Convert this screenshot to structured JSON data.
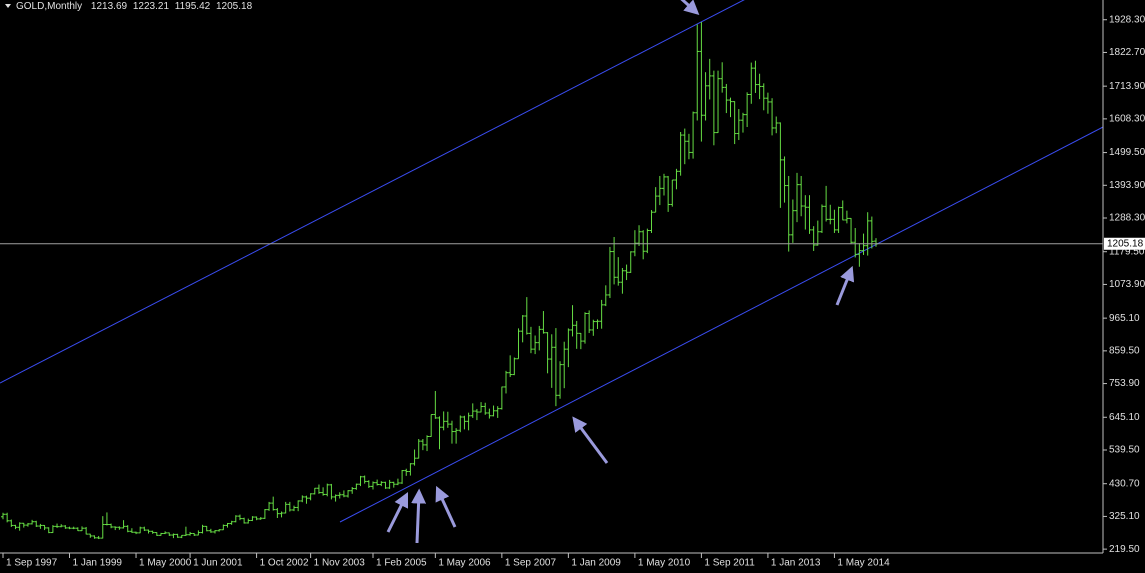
{
  "chart_data": {
    "type": "ohlc",
    "symbol": "GOLD,Monthly",
    "color": "#66dd44",
    "categories": [
      "1 Sep 1997",
      null,
      null,
      null,
      null,
      null,
      null,
      null,
      null,
      null,
      null,
      null,
      null,
      null,
      null,
      null,
      "1 Jan 1999",
      null,
      null,
      null,
      null,
      null,
      null,
      null,
      null,
      null,
      null,
      null,
      null,
      null,
      null,
      null,
      "1 May 2000",
      null,
      null,
      null,
      null,
      null,
      null,
      null,
      null,
      null,
      null,
      null,
      null,
      "1 Jun 2001",
      null,
      null,
      null,
      null,
      null,
      null,
      null,
      null,
      null,
      null,
      null,
      null,
      null,
      null,
      null,
      "1 Oct 2002",
      null,
      null,
      null,
      null,
      null,
      null,
      null,
      null,
      null,
      null,
      null,
      null,
      "1 Nov 2003",
      null,
      null,
      null,
      null,
      null,
      null,
      null,
      null,
      null,
      null,
      null,
      null,
      null,
      null,
      "1 Feb 2005",
      null,
      null,
      null,
      null,
      null,
      null,
      null,
      null,
      null,
      null,
      null,
      null,
      null,
      null,
      "1 May 2006",
      null,
      null,
      null,
      null,
      null,
      null,
      null,
      null,
      null,
      null,
      null,
      null,
      null,
      null,
      null,
      "1 Sep 2007",
      null,
      null,
      null,
      null,
      null,
      null,
      null,
      null,
      null,
      null,
      null,
      null,
      null,
      null,
      null,
      "1 Jan 2009",
      null,
      null,
      null,
      null,
      null,
      null,
      null,
      null,
      null,
      null,
      null,
      null,
      null,
      null,
      null,
      "1 May 2010",
      null,
      null,
      null,
      null,
      null,
      null,
      null,
      null,
      null,
      null,
      null,
      null,
      null,
      null,
      null,
      "1 Sep 2011",
      null,
      null,
      null,
      null,
      null,
      null,
      null,
      null,
      null,
      null,
      null,
      null,
      null,
      null,
      null,
      "1 Jan 2013",
      null,
      null,
      null,
      null,
      null,
      null,
      null,
      null,
      null,
      null,
      null,
      null,
      null,
      null,
      null,
      "1 May 2014",
      null,
      null,
      null,
      null,
      null,
      null,
      null,
      null,
      null,
      null
    ],
    "bars": [
      [
        324,
        337,
        316,
        332
      ],
      [
        332,
        337,
        306,
        311
      ],
      [
        311,
        315,
        291,
        296
      ],
      [
        296,
        298,
        284,
        290
      ],
      [
        290,
        306,
        279,
        303
      ],
      [
        303,
        304,
        289,
        297
      ],
      [
        297,
        304,
        292,
        301
      ],
      [
        301,
        314,
        299,
        308
      ],
      [
        308,
        311,
        291,
        294
      ],
      [
        294,
        301,
        285,
        296
      ],
      [
        296,
        297,
        281,
        288
      ],
      [
        288,
        290,
        271,
        273
      ],
      [
        273,
        297,
        272,
        293
      ],
      [
        293,
        302,
        288,
        292
      ],
      [
        292,
        300,
        290,
        294
      ],
      [
        294,
        297,
        285,
        288
      ],
      [
        288,
        292,
        284,
        287
      ],
      [
        287,
        292,
        284,
        287
      ],
      [
        287,
        290,
        278,
        279
      ],
      [
        279,
        293,
        278,
        287
      ],
      [
        287,
        291,
        267,
        268
      ],
      [
        268,
        269,
        256,
        262
      ],
      [
        262,
        264,
        253,
        256
      ],
      [
        256,
        262,
        252,
        255
      ],
      [
        255,
        326,
        254,
        299
      ],
      [
        299,
        338,
        296,
        299
      ],
      [
        299,
        302,
        287,
        291
      ],
      [
        291,
        293,
        281,
        290
      ],
      [
        290,
        293,
        282,
        288
      ],
      [
        288,
        313,
        286,
        293
      ],
      [
        293,
        297,
        274,
        277
      ],
      [
        277,
        287,
        272,
        274
      ],
      [
        274,
        276,
        268,
        272
      ],
      [
        272,
        292,
        271,
        288
      ],
      [
        288,
        292,
        278,
        281
      ],
      [
        281,
        283,
        270,
        277
      ],
      [
        277,
        279,
        269,
        273
      ],
      [
        273,
        274,
        262,
        264
      ],
      [
        264,
        272,
        263,
        270
      ],
      [
        270,
        277,
        268,
        272
      ],
      [
        272,
        273,
        262,
        265
      ],
      [
        265,
        270,
        255,
        267
      ],
      [
        267,
        269,
        256,
        258
      ],
      [
        258,
        265,
        255,
        264
      ],
      [
        264,
        292,
        262,
        266
      ],
      [
        266,
        275,
        263,
        270
      ],
      [
        270,
        271,
        262,
        265
      ],
      [
        265,
        280,
        264,
        273
      ],
      [
        273,
        298,
        270,
        293
      ],
      [
        293,
        294,
        277,
        279
      ],
      [
        279,
        285,
        272,
        275
      ],
      [
        275,
        281,
        270,
        279
      ],
      [
        279,
        284,
        276,
        282
      ],
      [
        282,
        299,
        281,
        296
      ],
      [
        296,
        304,
        289,
        302
      ],
      [
        302,
        311,
        298,
        308
      ],
      [
        308,
        329,
        306,
        326
      ],
      [
        326,
        331,
        313,
        318
      ],
      [
        318,
        321,
        302,
        304
      ],
      [
        304,
        318,
        302,
        312
      ],
      [
        312,
        326,
        310,
        323
      ],
      [
        323,
        325,
        313,
        317
      ],
      [
        317,
        323,
        314,
        319
      ],
      [
        319,
        349,
        317,
        347
      ],
      [
        347,
        372,
        343,
        368
      ],
      [
        368,
        389,
        344,
        347
      ],
      [
        347,
        352,
        320,
        334
      ],
      [
        334,
        341,
        322,
        336
      ],
      [
        336,
        372,
        335,
        364
      ],
      [
        364,
        372,
        341,
        346
      ],
      [
        346,
        360,
        342,
        354
      ],
      [
        354,
        377,
        342,
        375
      ],
      [
        375,
        393,
        371,
        388
      ],
      [
        388,
        392,
        366,
        384
      ],
      [
        384,
        400,
        377,
        398
      ],
      [
        398,
        417,
        396,
        416
      ],
      [
        416,
        428,
        398,
        402
      ],
      [
        402,
        419,
        392,
        396
      ],
      [
        396,
        431,
        390,
        427
      ],
      [
        427,
        430,
        380,
        388
      ],
      [
        388,
        396,
        373,
        393
      ],
      [
        393,
        403,
        383,
        395
      ],
      [
        395,
        409,
        387,
        391
      ],
      [
        391,
        410,
        386,
        408
      ],
      [
        408,
        420,
        398,
        415
      ],
      [
        415,
        431,
        411,
        429
      ],
      [
        429,
        456,
        423,
        453
      ],
      [
        453,
        457,
        431,
        438
      ],
      [
        438,
        442,
        417,
        422
      ],
      [
        422,
        438,
        412,
        434
      ],
      [
        434,
        444,
        425,
        428
      ],
      [
        428,
        439,
        423,
        435
      ],
      [
        435,
        437,
        414,
        417
      ],
      [
        417,
        443,
        414,
        435
      ],
      [
        435,
        437,
        418,
        429
      ],
      [
        429,
        447,
        426,
        433
      ],
      [
        433,
        475,
        430,
        473
      ],
      [
        473,
        479,
        456,
        470
      ],
      [
        470,
        497,
        457,
        495
      ],
      [
        495,
        541,
        489,
        513
      ],
      [
        513,
        575,
        512,
        568
      ],
      [
        568,
        575,
        539,
        556
      ],
      [
        556,
        587,
        536,
        583
      ],
      [
        583,
        654,
        582,
        654
      ],
      [
        654,
        730,
        640,
        643
      ],
      [
        643,
        648,
        542,
        613
      ],
      [
        613,
        664,
        603,
        632
      ],
      [
        632,
        663,
        611,
        623
      ],
      [
        623,
        634,
        560,
        599
      ],
      [
        599,
        610,
        560,
        603
      ],
      [
        603,
        651,
        597,
        646
      ],
      [
        646,
        650,
        606,
        632
      ],
      [
        632,
        660,
        603,
        650
      ],
      [
        650,
        690,
        643,
        665
      ],
      [
        665,
        672,
        636,
        662
      ],
      [
        662,
        694,
        661,
        680
      ],
      [
        680,
        692,
        653,
        659
      ],
      [
        659,
        673,
        641,
        650
      ],
      [
        650,
        683,
        648,
        666
      ],
      [
        666,
        681,
        643,
        673
      ],
      [
        673,
        744,
        670,
        743
      ],
      [
        743,
        795,
        722,
        789
      ],
      [
        789,
        845,
        775,
        783
      ],
      [
        783,
        838,
        781,
        834
      ],
      [
        834,
        932,
        834,
        923
      ],
      [
        923,
        975,
        887,
        972
      ],
      [
        972,
        1033,
        912,
        916
      ],
      [
        916,
        937,
        852,
        865
      ],
      [
        865,
        909,
        849,
        886
      ],
      [
        886,
        940,
        861,
        929
      ],
      [
        929,
        988,
        915,
        918
      ],
      [
        918,
        920,
        787,
        833
      ],
      [
        833,
        913,
        740,
        871
      ],
      [
        871,
        933,
        681,
        716
      ],
      [
        716,
        826,
        705,
        815
      ],
      [
        815,
        889,
        739,
        865
      ],
      [
        865,
        932,
        807,
        927
      ],
      [
        927,
        1007,
        906,
        942
      ],
      [
        942,
        956,
        866,
        916
      ],
      [
        916,
        917,
        865,
        891
      ],
      [
        891,
        984,
        883,
        980
      ],
      [
        980,
        990,
        917,
        927
      ],
      [
        927,
        960,
        908,
        954
      ],
      [
        954,
        961,
        930,
        955
      ],
      [
        955,
        1024,
        931,
        1008
      ],
      [
        1008,
        1071,
        1004,
        1040
      ],
      [
        1040,
        1195,
        1030,
        1180
      ],
      [
        1180,
        1227,
        1074,
        1097
      ],
      [
        1097,
        1162,
        1070,
        1081
      ],
      [
        1081,
        1127,
        1044,
        1118
      ],
      [
        1118,
        1138,
        1088,
        1113
      ],
      [
        1113,
        1181,
        1111,
        1179
      ],
      [
        1179,
        1249,
        1165,
        1207
      ],
      [
        1207,
        1265,
        1198,
        1244
      ],
      [
        1244,
        1249,
        1155,
        1181
      ],
      [
        1181,
        1254,
        1175,
        1248
      ],
      [
        1248,
        1314,
        1240,
        1307
      ],
      [
        1307,
        1388,
        1307,
        1359
      ],
      [
        1359,
        1424,
        1330,
        1384
      ],
      [
        1384,
        1431,
        1361,
        1421
      ],
      [
        1421,
        1424,
        1308,
        1332
      ],
      [
        1332,
        1411,
        1325,
        1411
      ],
      [
        1411,
        1447,
        1381,
        1439
      ],
      [
        1439,
        1566,
        1425,
        1556
      ],
      [
        1556,
        1577,
        1462,
        1536
      ],
      [
        1536,
        1560,
        1478,
        1500
      ],
      [
        1500,
        1632,
        1480,
        1628
      ],
      [
        1628,
        1913,
        1603,
        1826
      ],
      [
        1826,
        1921,
        1535,
        1620
      ],
      [
        1620,
        1759,
        1603,
        1715
      ],
      [
        1715,
        1802,
        1671,
        1747
      ],
      [
        1747,
        1764,
        1523,
        1564
      ],
      [
        1564,
        1764,
        1563,
        1738
      ],
      [
        1738,
        1791,
        1693,
        1710
      ],
      [
        1710,
        1721,
        1627,
        1669
      ],
      [
        1669,
        1677,
        1614,
        1664
      ],
      [
        1664,
        1665,
        1527,
        1561
      ],
      [
        1561,
        1640,
        1540,
        1604
      ],
      [
        1604,
        1628,
        1564,
        1622
      ],
      [
        1622,
        1694,
        1582,
        1687
      ],
      [
        1687,
        1790,
        1657,
        1772
      ],
      [
        1772,
        1796,
        1692,
        1719
      ],
      [
        1719,
        1754,
        1672,
        1713
      ],
      [
        1713,
        1723,
        1636,
        1675
      ],
      [
        1675,
        1693,
        1625,
        1663
      ],
      [
        1663,
        1675,
        1555,
        1579
      ],
      [
        1579,
        1616,
        1562,
        1595
      ],
      [
        1595,
        1597,
        1321,
        1476
      ],
      [
        1476,
        1487,
        1338,
        1393
      ],
      [
        1393,
        1424,
        1180,
        1234
      ],
      [
        1234,
        1348,
        1208,
        1312
      ],
      [
        1312,
        1434,
        1275,
        1396
      ],
      [
        1396,
        1424,
        1294,
        1327
      ],
      [
        1327,
        1362,
        1251,
        1323
      ],
      [
        1323,
        1362,
        1237,
        1250
      ],
      [
        1250,
        1262,
        1182,
        1201
      ],
      [
        1201,
        1280,
        1199,
        1244
      ],
      [
        1244,
        1332,
        1240,
        1326
      ],
      [
        1326,
        1392,
        1277,
        1284
      ],
      [
        1284,
        1331,
        1268,
        1284
      ],
      [
        1284,
        1315,
        1240,
        1250
      ],
      [
        1250,
        1325,
        1240,
        1322
      ],
      [
        1322,
        1345,
        1281,
        1282
      ],
      [
        1282,
        1312,
        1271,
        1287
      ],
      [
        1287,
        1288,
        1204,
        1210
      ],
      [
        1210,
        1256,
        1161,
        1171
      ],
      [
        1171,
        1207,
        1131,
        1183
      ],
      [
        1183,
        1238,
        1169,
        1199
      ],
      [
        1199,
        1307,
        1167,
        1279
      ],
      [
        1279,
        1293,
        1190,
        1213
      ],
      [
        1213.69,
        1223.21,
        1195.42,
        1205.18
      ]
    ],
    "ylim": [
      207,
      1992
    ],
    "yticks": [
      {
        "value": 219.5,
        "label": "219.50"
      },
      {
        "value": 325.1,
        "label": "325.10"
      },
      {
        "value": 430.7,
        "label": "430.70"
      },
      {
        "value": 539.5,
        "label": "539.50"
      },
      {
        "value": 645.1,
        "label": "645.10"
      },
      {
        "value": 753.9,
        "label": "753.90"
      },
      {
        "value": 859.5,
        "label": "859.50"
      },
      {
        "value": 965.1,
        "label": "965.10"
      },
      {
        "value": 1073.9,
        "label": "1073.90"
      },
      {
        "value": 1179.5,
        "label": "1179.50"
      },
      {
        "value": 1288.3,
        "label": "1288.30"
      },
      {
        "value": 1393.9,
        "label": "1393.90"
      },
      {
        "value": 1499.5,
        "label": "1499.50"
      },
      {
        "value": 1608.3,
        "label": "1608.30"
      },
      {
        "value": 1713.9,
        "label": "1713.90"
      },
      {
        "value": 1822.7,
        "label": "1822.70"
      },
      {
        "value": 1928.3,
        "label": "1928.30"
      }
    ],
    "grid": false
  }
}
